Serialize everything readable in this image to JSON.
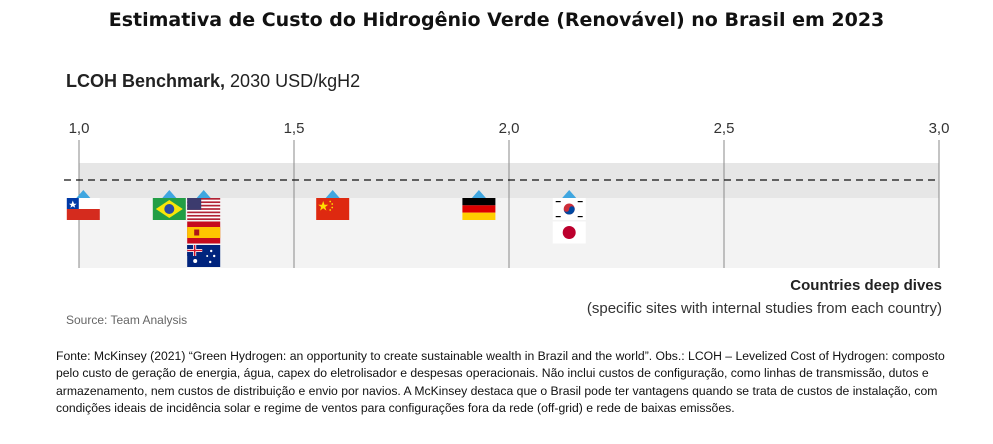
{
  "header": {
    "title": "Estimativa de Custo do Hidrogênio Verde (Renovável) no Brasil em 2023"
  },
  "chart_data": {
    "type": "scatter",
    "title_bold": "LCOH Benchmark,",
    "title_rest": " 2030 USD/kgH2",
    "xlim": [
      1.0,
      3.0
    ],
    "x_ticks": [
      "1,0",
      "1,5",
      "2,0",
      "2,5",
      "3,0"
    ],
    "x_tick_values": [
      1.0,
      1.5,
      2.0,
      2.5,
      3.0
    ],
    "grid": true,
    "band_color": "#e6e6e6",
    "marker_color": "#3fa6e0",
    "dashed_reference_line": true,
    "points": [
      {
        "country": "Chile",
        "flag": "chile",
        "x": 1.01
      },
      {
        "country": "Brazil",
        "flag": "brazil",
        "x": 1.21
      },
      {
        "country": "United States",
        "flag": "usa",
        "x": 1.29
      },
      {
        "country": "Spain",
        "flag": "spain",
        "x": 1.29
      },
      {
        "country": "Australia",
        "flag": "australia",
        "x": 1.29
      },
      {
        "country": "China",
        "flag": "china",
        "x": 1.59
      },
      {
        "country": "Germany",
        "flag": "germany",
        "x": 1.93
      },
      {
        "country": "South Korea",
        "flag": "korea",
        "x": 2.14
      },
      {
        "country": "Japan",
        "flag": "japan",
        "x": 2.14
      }
    ],
    "axis_note_bold": "Countries deep dives",
    "axis_note": "(specific sites with internal studies from each country)",
    "source": "Source: Team Analysis"
  },
  "footer": {
    "note": "Fonte: McKinsey (2021) “Green Hydrogen: an opportunity to create sustainable wealth in Brazil and the world”. Obs.: LCOH – Levelized Cost of Hydrogen: composto pelo custo de geração de energia, água, capex do eletrolisador e despesas operacionais. Não inclui custos de configuração, como linhas de transmissão, dutos e armazenamento, nem custos de distribuição e envio por navios. A McKinsey destaca que o Brasil pode ter vantagens quando se trata de custos de instalação, com condições ideais de incidência solar e regime de ventos para configurações fora da rede (off-grid) e rede de baixas emissões."
  }
}
